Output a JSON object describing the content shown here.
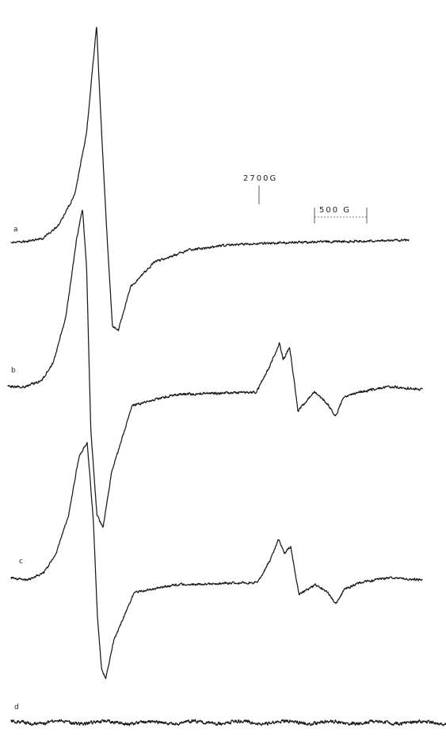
{
  "chart_data": {
    "type": "line",
    "title": "",
    "xlabel": "",
    "ylabel": "",
    "grid": false,
    "legend": "none",
    "annotations": {
      "field_marker": "2700G",
      "scale_bar": "500 G"
    },
    "series": [
      {
        "label": "a",
        "points": [
          [
            0,
            0
          ],
          [
            0.04,
            0.02
          ],
          [
            0.08,
            0.08
          ],
          [
            0.12,
            0.35
          ],
          [
            0.16,
            0.95
          ],
          [
            0.19,
            2.2
          ],
          [
            0.205,
            3.5
          ],
          [
            0.215,
            4.35
          ],
          [
            0.225,
            2.6
          ],
          [
            0.24,
            0.3
          ],
          [
            0.255,
            -1.7
          ],
          [
            0.27,
            -1.75
          ],
          [
            0.3,
            -0.9
          ],
          [
            0.36,
            -0.4
          ],
          [
            0.45,
            -0.15
          ],
          [
            0.55,
            -0.05
          ],
          [
            0.7,
            0
          ],
          [
            0.85,
            0.02
          ],
          [
            1.0,
            0.05
          ]
        ]
      },
      {
        "label": "b",
        "points": [
          [
            0,
            0
          ],
          [
            0.04,
            0
          ],
          [
            0.08,
            0.1
          ],
          [
            0.11,
            0.45
          ],
          [
            0.14,
            1.3
          ],
          [
            0.165,
            2.7
          ],
          [
            0.18,
            3.3
          ],
          [
            0.19,
            2.2
          ],
          [
            0.2,
            -0.8
          ],
          [
            0.215,
            -2.4
          ],
          [
            0.23,
            -2.6
          ],
          [
            0.25,
            -1.6
          ],
          [
            0.3,
            -0.35
          ],
          [
            0.4,
            -0.15
          ],
          [
            0.6,
            -0.1
          ],
          [
            0.63,
            0.35
          ],
          [
            0.655,
            0.8
          ],
          [
            0.665,
            0.5
          ],
          [
            0.68,
            0.75
          ],
          [
            0.7,
            -0.45
          ],
          [
            0.74,
            -0.1
          ],
          [
            0.77,
            -0.3
          ],
          [
            0.79,
            -0.55
          ],
          [
            0.81,
            -0.2
          ],
          [
            0.85,
            -0.1
          ],
          [
            0.92,
            0
          ],
          [
            1.0,
            -0.05
          ]
        ]
      },
      {
        "label": "c",
        "points": [
          [
            0,
            0
          ],
          [
            0.04,
            -0.05
          ],
          [
            0.08,
            0.1
          ],
          [
            0.11,
            0.5
          ],
          [
            0.14,
            1.3
          ],
          [
            0.165,
            2.5
          ],
          [
            0.185,
            2.8
          ],
          [
            0.2,
            1.2
          ],
          [
            0.21,
            -0.8
          ],
          [
            0.22,
            -1.9
          ],
          [
            0.23,
            -2.1
          ],
          [
            0.25,
            -1.3
          ],
          [
            0.3,
            -0.3
          ],
          [
            0.4,
            -0.15
          ],
          [
            0.6,
            -0.1
          ],
          [
            0.63,
            0.35
          ],
          [
            0.65,
            0.8
          ],
          [
            0.665,
            0.5
          ],
          [
            0.68,
            0.65
          ],
          [
            0.7,
            -0.35
          ],
          [
            0.74,
            -0.15
          ],
          [
            0.77,
            -0.3
          ],
          [
            0.79,
            -0.55
          ],
          [
            0.81,
            -0.25
          ],
          [
            0.85,
            -0.1
          ],
          [
            0.92,
            0
          ],
          [
            1.0,
            -0.05
          ]
        ]
      },
      {
        "label": "d",
        "points": [
          [
            0,
            0
          ],
          [
            0.25,
            0
          ],
          [
            0.5,
            0
          ],
          [
            0.75,
            0
          ],
          [
            1.0,
            0
          ]
        ]
      }
    ]
  }
}
